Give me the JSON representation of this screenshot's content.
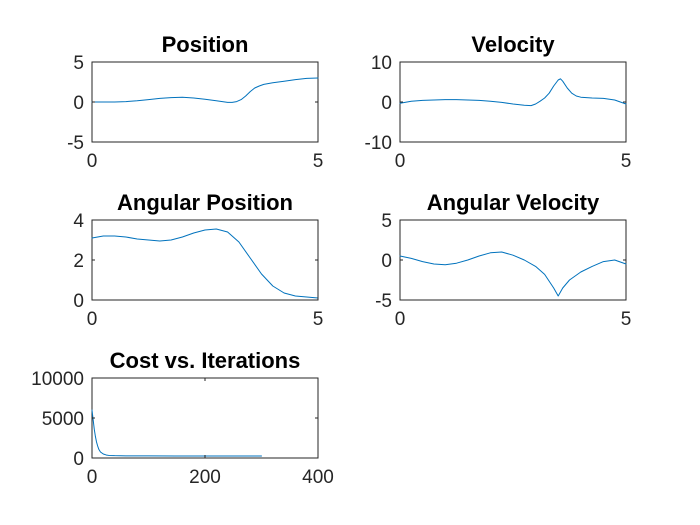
{
  "figure": {
    "background": "#ffffff",
    "axes_color": "#262626",
    "line_color": "#0072bd"
  },
  "chart_data": [
    {
      "type": "line",
      "title": "Position",
      "xlim": [
        0,
        5
      ],
      "ylim": [
        -5,
        5
      ],
      "xticks": [
        0,
        5
      ],
      "yticks": [
        -5,
        0,
        5
      ],
      "x": [
        0,
        0.25,
        0.5,
        0.75,
        1.0,
        1.25,
        1.5,
        1.75,
        2.0,
        2.25,
        2.5,
        2.75,
        3.0,
        3.1,
        3.2,
        3.3,
        3.4,
        3.5,
        3.6,
        3.7,
        3.8,
        4.0,
        4.25,
        4.5,
        4.75,
        5.0
      ],
      "y": [
        0,
        0,
        0,
        0.05,
        0.15,
        0.3,
        0.45,
        0.55,
        0.6,
        0.5,
        0.35,
        0.15,
        -0.05,
        -0.05,
        0.05,
        0.3,
        0.75,
        1.3,
        1.75,
        2.0,
        2.2,
        2.4,
        2.6,
        2.8,
        2.95,
        3.0
      ],
      "grid": false,
      "legend": false
    },
    {
      "type": "line",
      "title": "Velocity",
      "xlim": [
        0,
        5
      ],
      "ylim": [
        -10,
        10
      ],
      "xticks": [
        0,
        5
      ],
      "yticks": [
        -10,
        0,
        10
      ],
      "x": [
        0,
        0.25,
        0.5,
        0.75,
        1.0,
        1.25,
        1.5,
        1.75,
        2.0,
        2.25,
        2.5,
        2.75,
        2.9,
        3.0,
        3.1,
        3.2,
        3.3,
        3.4,
        3.5,
        3.55,
        3.6,
        3.7,
        3.8,
        3.9,
        4.0,
        4.25,
        4.5,
        4.75,
        5.0
      ],
      "y": [
        -0.3,
        0.2,
        0.4,
        0.5,
        0.6,
        0.6,
        0.5,
        0.4,
        0.2,
        -0.1,
        -0.5,
        -0.8,
        -0.9,
        -0.5,
        0.2,
        1.0,
        2.2,
        4.0,
        5.5,
        5.8,
        5.2,
        3.5,
        2.2,
        1.5,
        1.2,
        1.0,
        0.9,
        0.5,
        -0.5
      ],
      "grid": false,
      "legend": false
    },
    {
      "type": "line",
      "title": "Angular Position",
      "xlim": [
        0,
        5
      ],
      "ylim": [
        0,
        4
      ],
      "xticks": [
        0,
        5
      ],
      "yticks": [
        0,
        2,
        4
      ],
      "x": [
        0,
        0.25,
        0.5,
        0.75,
        1.0,
        1.25,
        1.5,
        1.75,
        2.0,
        2.25,
        2.5,
        2.75,
        3.0,
        3.25,
        3.5,
        3.75,
        4.0,
        4.25,
        4.5,
        4.75,
        5.0
      ],
      "y": [
        3.1,
        3.2,
        3.2,
        3.15,
        3.05,
        3.0,
        2.95,
        3.0,
        3.15,
        3.35,
        3.5,
        3.55,
        3.4,
        2.9,
        2.1,
        1.3,
        0.7,
        0.35,
        0.2,
        0.15,
        0.1
      ],
      "grid": false,
      "legend": false
    },
    {
      "type": "line",
      "title": "Angular Velocity",
      "xlim": [
        0,
        5
      ],
      "ylim": [
        -5,
        5
      ],
      "xticks": [
        0,
        5
      ],
      "yticks": [
        -5,
        0,
        5
      ],
      "x": [
        0,
        0.25,
        0.5,
        0.75,
        1.0,
        1.25,
        1.5,
        1.75,
        2.0,
        2.25,
        2.5,
        2.75,
        3.0,
        3.2,
        3.4,
        3.5,
        3.6,
        3.75,
        4.0,
        4.25,
        4.5,
        4.75,
        5.0
      ],
      "y": [
        0.5,
        0.2,
        -0.2,
        -0.5,
        -0.6,
        -0.4,
        0.0,
        0.5,
        0.9,
        1.0,
        0.6,
        0.0,
        -0.8,
        -1.8,
        -3.5,
        -4.5,
        -3.5,
        -2.5,
        -1.5,
        -0.8,
        -0.2,
        0.0,
        -0.5
      ],
      "grid": false,
      "legend": false
    },
    {
      "type": "line",
      "title": "Cost vs. Iterations",
      "xlim": [
        0,
        400
      ],
      "ylim": [
        0,
        10000
      ],
      "xticks": [
        0,
        200,
        400
      ],
      "yticks": [
        0,
        5000,
        10000
      ],
      "x": [
        0,
        2,
        4,
        6,
        8,
        10,
        12,
        15,
        20,
        25,
        30,
        40,
        50,
        60,
        80,
        100,
        150,
        200,
        250,
        300
      ],
      "y": [
        6000,
        4800,
        3600,
        2700,
        2000,
        1500,
        1100,
        750,
        500,
        380,
        320,
        290,
        280,
        270,
        265,
        260,
        255,
        250,
        250,
        250
      ],
      "grid": false,
      "legend": false
    }
  ]
}
